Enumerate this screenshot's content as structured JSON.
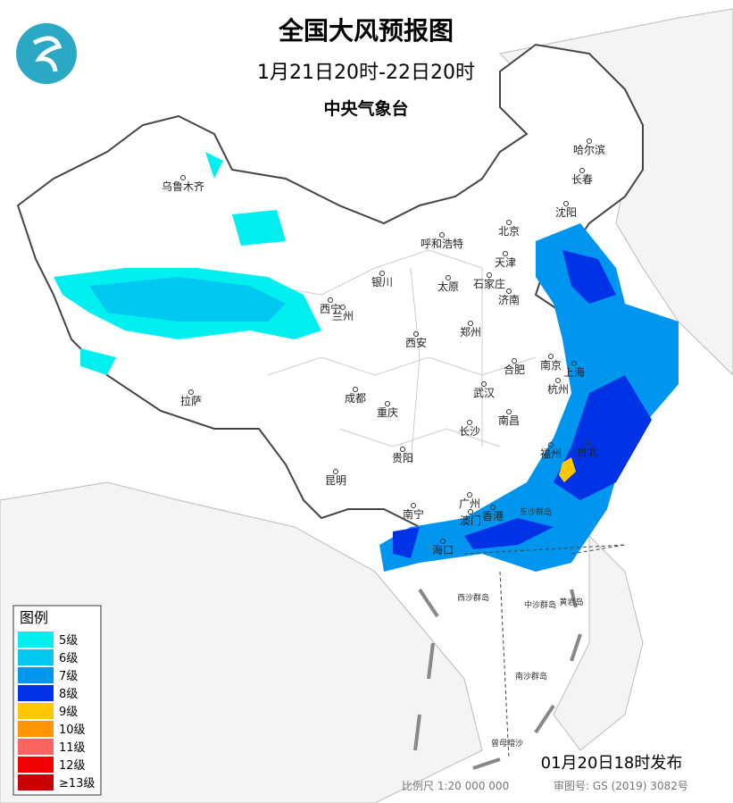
{
  "header": {
    "title": "全国大风预报图",
    "subtitle": "1月21日20时-22日20时",
    "issuer": "中央气象台"
  },
  "cities": [
    "乌鲁木齐",
    "哈尔滨",
    "长春",
    "沈阳",
    "北京",
    "天津",
    "呼和浩特",
    "石家庄",
    "太原",
    "济南",
    "银川",
    "西宁",
    "兰州",
    "西安",
    "郑州",
    "合肥",
    "南京",
    "上海",
    "杭州",
    "武汉",
    "成都",
    "重庆",
    "拉萨",
    "长沙",
    "南昌",
    "福州",
    "台北",
    "贵阳",
    "昆明",
    "南宁",
    "广州",
    "澳门",
    "香港",
    "海口"
  ],
  "islands": [
    "东沙群岛",
    "西沙群岛",
    "中沙群岛",
    "黄岩岛",
    "南沙群岛",
    "曾母暗沙"
  ],
  "legend": {
    "title": "图例",
    "items": [
      {
        "label": "5级",
        "color": "#00f0f0"
      },
      {
        "label": "6级",
        "color": "#00c8f0"
      },
      {
        "label": "7级",
        "color": "#0096f0"
      },
      {
        "label": "8级",
        "color": "#0032e6"
      },
      {
        "label": "9级",
        "color": "#ffc800"
      },
      {
        "label": "10级",
        "color": "#ff9600"
      },
      {
        "label": "11级",
        "color": "#ff6464"
      },
      {
        "label": "12级",
        "color": "#f00000"
      },
      {
        "label": "≥13级",
        "color": "#c80000"
      }
    ]
  },
  "footer": {
    "release": "01月20日18时发布",
    "scale": "比例尺 1:20 000 000",
    "approval": "审图号: GS (2019) 3082号"
  }
}
